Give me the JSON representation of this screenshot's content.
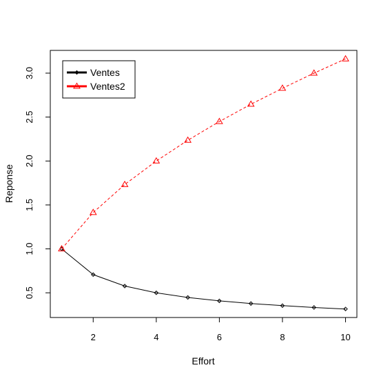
{
  "chart_data": {
    "type": "line",
    "title": "",
    "xlabel": "Effort",
    "ylabel": "Reponse",
    "xlim": [
      0.64,
      10.36
    ],
    "ylim": [
      0.219,
      3.259
    ],
    "x_ticks": [
      2,
      4,
      6,
      8,
      10
    ],
    "y_ticks": [
      0.5,
      1.0,
      1.5,
      2.0,
      2.5,
      3.0
    ],
    "x_tick_labels": [
      "2",
      "4",
      "6",
      "8",
      "10"
    ],
    "y_tick_labels": [
      "0.5",
      "1.0",
      "1.5",
      "2.0",
      "2.5",
      "3.0"
    ],
    "grid": false,
    "legend_position": "top-left",
    "x": [
      1,
      2,
      3,
      4,
      5,
      6,
      7,
      8,
      9,
      10
    ],
    "series": [
      {
        "name": "Ventes",
        "values": [
          1.0,
          0.707,
          0.577,
          0.5,
          0.447,
          0.408,
          0.378,
          0.354,
          0.333,
          0.316
        ],
        "color": "#000000",
        "line_style": "solid",
        "marker": "diamond"
      },
      {
        "name": "Ventes2",
        "values": [
          1.0,
          1.414,
          1.732,
          2.0,
          2.236,
          2.449,
          2.646,
          2.828,
          3.0,
          3.162
        ],
        "color": "#ff0000",
        "line_style": "dashed",
        "marker": "triangle"
      }
    ]
  }
}
